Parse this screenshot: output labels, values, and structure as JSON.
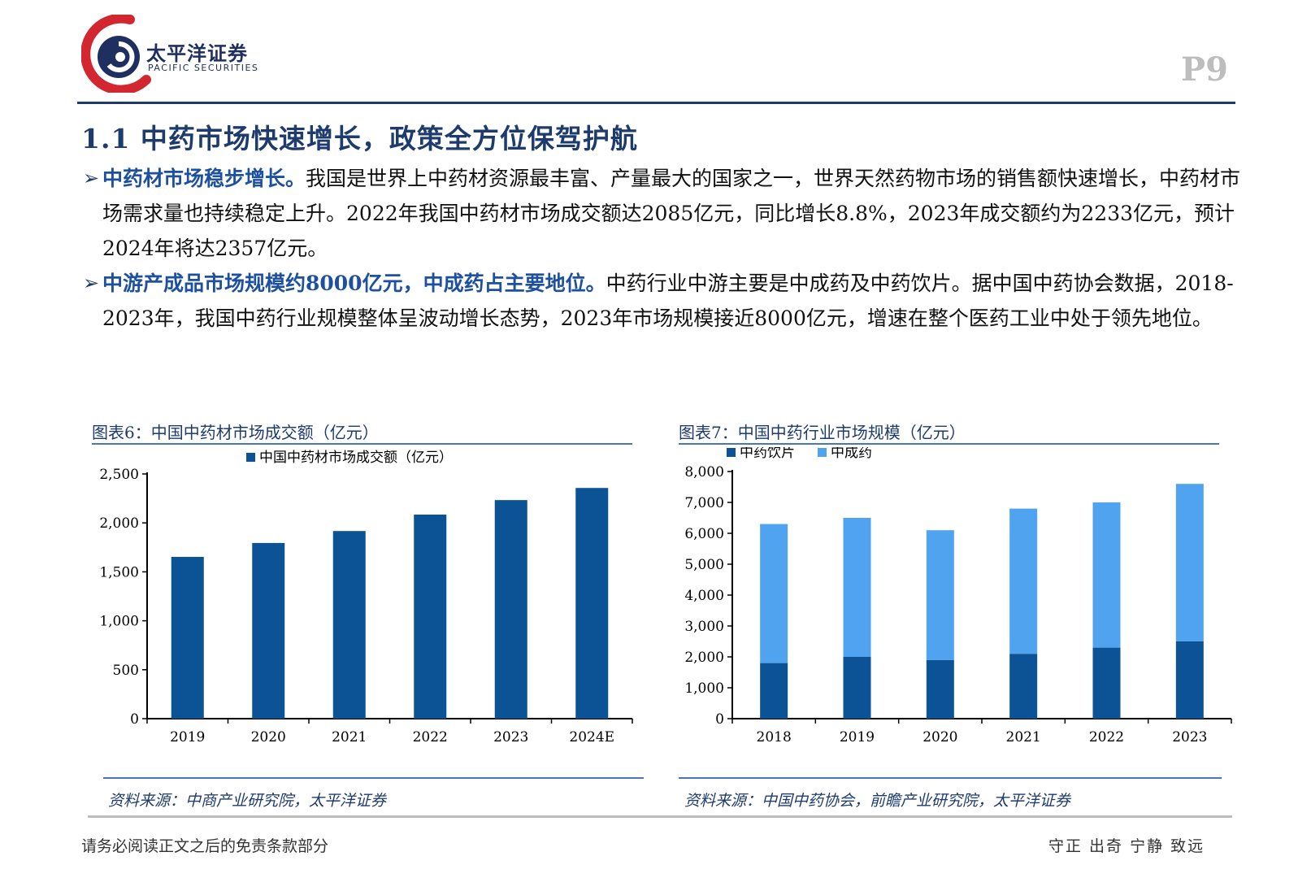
{
  "header": {
    "brand_cn": "太平洋证券",
    "brand_en": "PACIFIC SECURITIES",
    "page_number": "P9",
    "colors": {
      "navy": "#1e3b6e",
      "logo_red": "#d22630",
      "text_blue": "#1e50a0"
    }
  },
  "section_title": "1.1 中药市场快速增长，政策全方位保驾护航",
  "paragraphs": [
    {
      "bullet": "➢",
      "lead": "中药材市场稳步增长。",
      "text": "我国是世界上中药材资源最丰富、产量最大的国家之一，世界天然药物市场的销售额快速增长，中药材市场需求量也持续稳定上升。2022年我国中药材市场成交额达2085亿元，同比增长8.8%，2023年成交额约为2233亿元，预计2024年将达2357亿元。"
    },
    {
      "bullet": "➢",
      "lead": "中游产成品市场规模约8000亿元，中成药占主要地位。",
      "text": "中药行业中游主要是中成药及中药饮片。据中国中药协会数据，2018-2023年，我国中药行业规模整体呈波动增长态势，2023年市场规模接近8000亿元，增速在整个医药工业中处于领先地位。"
    }
  ],
  "figures": {
    "fig6": {
      "title": "图表6：中国中药材市场成交额（亿元）",
      "source": "资料来源：中商产业研究院，太平洋证券"
    },
    "fig7": {
      "title": "图表7：中国中药行业市场规模（亿元）",
      "source": "资料来源：中国中药协会，前瞻产业研究院，太平洋证券"
    }
  },
  "chart_data": [
    {
      "type": "bar",
      "categories": [
        "2019",
        "2020",
        "2021",
        "2022",
        "2023",
        "2024E"
      ],
      "series": [
        {
          "name": "中国中药材市场成交额（亿元）",
          "values": [
            1653,
            1795,
            1917,
            2085,
            2233,
            2357
          ],
          "color": "#0b5394"
        }
      ],
      "ylim": [
        0,
        2500
      ],
      "yticks": [
        0,
        500,
        1000,
        1500,
        2000,
        2500
      ],
      "ytick_labels": [
        "0",
        "500",
        "1,000",
        "1,500",
        "2,000",
        "2,500"
      ],
      "legend": "top-center",
      "grid": false
    },
    {
      "type": "bar",
      "stacked": true,
      "categories": [
        "2018",
        "2019",
        "2020",
        "2021",
        "2022",
        "2023"
      ],
      "series": [
        {
          "name": "中药饮片",
          "values": [
            1800,
            2000,
            1900,
            2100,
            2300,
            2500
          ],
          "color": "#0b5394"
        },
        {
          "name": "中成药",
          "values": [
            4500,
            4500,
            4200,
            4700,
            4700,
            5100
          ],
          "color": "#4fa3ef"
        }
      ],
      "ylim": [
        0,
        8000
      ],
      "yticks": [
        0,
        1000,
        2000,
        3000,
        4000,
        5000,
        6000,
        7000,
        8000
      ],
      "ytick_labels": [
        "0",
        "1,000",
        "2,000",
        "3,000",
        "4,000",
        "5,000",
        "6,000",
        "7,000",
        "8,000"
      ],
      "legend": "top-left",
      "grid": false
    }
  ],
  "footer": {
    "disclaimer": "请务必阅读正文之后的免责条款部分",
    "motto": "守正 出奇 宁静 致远"
  }
}
